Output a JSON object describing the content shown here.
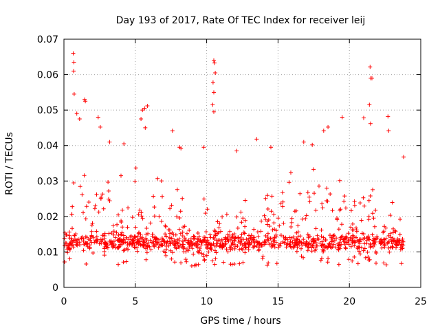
{
  "chart_data": {
    "type": "scatter",
    "title": "Day 193 of 2017, Rate Of TEC Index for receiver leij",
    "xlabel": "GPS time / hours",
    "ylabel": "ROTI / TECUs",
    "xlim": [
      0,
      25
    ],
    "ylim": [
      0,
      0.07
    ],
    "x_ticks": [
      "0",
      "5",
      "10",
      "15",
      "20",
      "25"
    ],
    "y_ticks": [
      "0",
      "0.01",
      "0.02",
      "0.03",
      "0.04",
      "0.05",
      "0.06",
      "0.07"
    ],
    "x_tick_values": [
      0,
      5,
      10,
      15,
      20,
      25
    ],
    "y_tick_values": [
      0,
      0.01,
      0.02,
      0.03,
      0.04,
      0.05,
      0.06,
      0.07
    ],
    "grid": true,
    "marker": "+",
    "series_color": "#ff0000",
    "outliers": [
      {
        "x": 0.65,
        "y": 0.066
      },
      {
        "x": 0.7,
        "y": 0.0635
      },
      {
        "x": 0.68,
        "y": 0.061
      },
      {
        "x": 0.72,
        "y": 0.0545
      },
      {
        "x": 1.45,
        "y": 0.053
      },
      {
        "x": 1.5,
        "y": 0.0525
      },
      {
        "x": 0.9,
        "y": 0.049
      },
      {
        "x": 1.1,
        "y": 0.0475
      },
      {
        "x": 2.4,
        "y": 0.048
      },
      {
        "x": 2.55,
        "y": 0.0452
      },
      {
        "x": 5.5,
        "y": 0.05
      },
      {
        "x": 5.65,
        "y": 0.0505
      },
      {
        "x": 5.85,
        "y": 0.0512
      },
      {
        "x": 5.4,
        "y": 0.0475
      },
      {
        "x": 5.7,
        "y": 0.045
      },
      {
        "x": 10.5,
        "y": 0.064
      },
      {
        "x": 10.55,
        "y": 0.0633
      },
      {
        "x": 10.6,
        "y": 0.0605
      },
      {
        "x": 10.45,
        "y": 0.0578
      },
      {
        "x": 10.5,
        "y": 0.055
      },
      {
        "x": 10.42,
        "y": 0.0515
      },
      {
        "x": 10.5,
        "y": 0.0495
      },
      {
        "x": 21.45,
        "y": 0.0622
      },
      {
        "x": 21.5,
        "y": 0.059
      },
      {
        "x": 21.58,
        "y": 0.059
      },
      {
        "x": 21.4,
        "y": 0.0515
      },
      {
        "x": 21.48,
        "y": 0.0462
      },
      {
        "x": 19.5,
        "y": 0.048
      },
      {
        "x": 21.0,
        "y": 0.0478
      },
      {
        "x": 22.7,
        "y": 0.0482
      },
      {
        "x": 22.75,
        "y": 0.0442
      },
      {
        "x": 18.5,
        "y": 0.0452
      },
      {
        "x": 18.2,
        "y": 0.0442
      },
      {
        "x": 3.2,
        "y": 0.041
      },
      {
        "x": 4.2,
        "y": 0.0405
      },
      {
        "x": 7.6,
        "y": 0.0442
      },
      {
        "x": 8.2,
        "y": 0.0392
      },
      {
        "x": 8.1,
        "y": 0.0395
      },
      {
        "x": 12.1,
        "y": 0.0385
      },
      {
        "x": 13.5,
        "y": 0.0418
      },
      {
        "x": 14.5,
        "y": 0.0395
      },
      {
        "x": 9.8,
        "y": 0.0395
      },
      {
        "x": 16.8,
        "y": 0.041
      },
      {
        "x": 17.4,
        "y": 0.0402
      },
      {
        "x": 23.8,
        "y": 0.0368
      }
    ]
  }
}
